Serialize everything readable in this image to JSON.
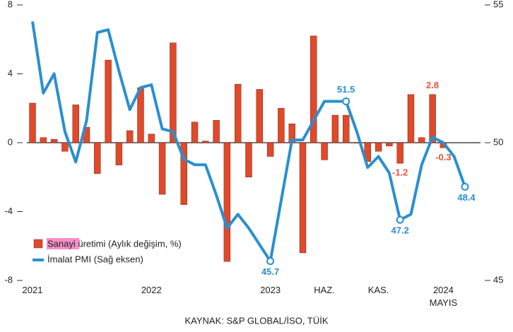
{
  "chart_data": {
    "type": "bar_line",
    "source": "KAYNAK: S&P GLOBAL/İSO, TÜİK",
    "categories": [
      "2021",
      null,
      null,
      null,
      null,
      null,
      null,
      null,
      null,
      null,
      null,
      "2022",
      null,
      null,
      null,
      null,
      null,
      null,
      null,
      null,
      null,
      null,
      "2023",
      null,
      null,
      null,
      null,
      "HAZ.",
      null,
      null,
      null,
      null,
      "KAS.",
      null,
      null,
      null,
      null,
      null,
      "2024 MAYIS",
      null,
      null
    ],
    "series": [
      {
        "name": "Sanayi üretimi (Aylık değişim, %)",
        "color": "#e0492a",
        "label_color": "#e8533a",
        "axis": "y",
        "values": [
          2.3,
          0.3,
          0.2,
          -0.5,
          2.2,
          0.9,
          -1.8,
          4.8,
          -1.3,
          0.7,
          3.2,
          0.5,
          -3.0,
          5.8,
          -3.6,
          1.2,
          0.1,
          1.3,
          -6.9,
          3.4,
          -2.0,
          3.1,
          -0.8,
          2.0,
          1.1,
          -6.4,
          6.2,
          -1.0,
          1.6,
          1.6,
          0,
          -1.1,
          -0.5,
          -0.2,
          -1.2,
          2.8,
          0.3,
          2.8,
          -0.3,
          null,
          null
        ],
        "value_labels": [
          null,
          null,
          null,
          null,
          null,
          null,
          null,
          null,
          null,
          null,
          null,
          null,
          null,
          null,
          null,
          null,
          null,
          null,
          null,
          null,
          null,
          null,
          null,
          null,
          null,
          null,
          null,
          null,
          null,
          null,
          null,
          null,
          null,
          null,
          "-1.2",
          null,
          null,
          "2.8",
          "-0.3",
          null,
          null
        ]
      },
      {
        "name": "İmalat PMI (Sağ eksen)",
        "color": "#2a8fd0",
        "axis": "y2",
        "values": [
          54.4,
          51.8,
          52.5,
          50.4,
          49.3,
          50.8,
          54.0,
          54.1,
          52.6,
          51.2,
          52.0,
          52.1,
          50.5,
          50.4,
          49.4,
          49.2,
          49.2,
          48.1,
          46.9,
          47.4,
          46.9,
          46.3,
          45.7,
          47.9,
          50.1,
          50.1,
          50.8,
          51.5,
          51.5,
          51.5,
          50.4,
          49.1,
          49.5,
          48.9,
          47.2,
          47.4,
          49.2,
          50.2,
          50.0,
          49.5,
          48.4
        ],
        "value_labels": [
          null,
          null,
          null,
          null,
          null,
          null,
          null,
          null,
          null,
          null,
          null,
          null,
          null,
          null,
          null,
          null,
          null,
          null,
          null,
          null,
          null,
          null,
          "45.7",
          null,
          null,
          null,
          null,
          null,
          null,
          "51.5",
          null,
          null,
          null,
          null,
          "47.2",
          null,
          null,
          null,
          null,
          null,
          "48.4"
        ]
      }
    ],
    "ylim": [
      -8,
      8
    ],
    "yticks": [
      8,
      4,
      0,
      -4,
      -8
    ],
    "y2lim": [
      45,
      55
    ],
    "y2ticks": [
      55,
      50,
      45
    ]
  }
}
